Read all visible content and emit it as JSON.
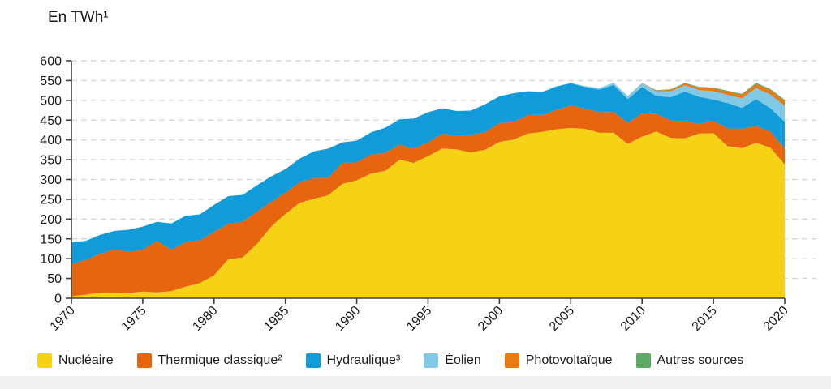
{
  "page": {
    "background": "#ffffff",
    "footer_strip_color": "#f0f0f1",
    "text_color": "#1a1a1a",
    "grid_color": "#d9d9d9",
    "axis_color": "#404040"
  },
  "chart_data": {
    "type": "area",
    "stacked": true,
    "title": "En TWh¹",
    "xlabel": "",
    "ylabel": "",
    "ylim": [
      0,
      600
    ],
    "y_tick_step": 50,
    "y_tick_labels": [
      "0",
      "50",
      "100",
      "150",
      "200",
      "250",
      "300",
      "350",
      "400",
      "450",
      "500",
      "550",
      "600"
    ],
    "x_tick_labels": [
      "1970",
      "1975",
      "1980",
      "1985",
      "1990",
      "1995",
      "2000",
      "2005",
      "2010",
      "2015",
      "2020"
    ],
    "grid": "horizontal-dashed",
    "legend_position": "bottom",
    "years": [
      1970,
      1971,
      1972,
      1973,
      1974,
      1975,
      1976,
      1977,
      1978,
      1979,
      1980,
      1981,
      1982,
      1983,
      1984,
      1985,
      1986,
      1987,
      1988,
      1989,
      1990,
      1991,
      1992,
      1993,
      1994,
      1995,
      1996,
      1997,
      1998,
      1999,
      2000,
      2001,
      2002,
      2003,
      2004,
      2005,
      2006,
      2007,
      2008,
      2009,
      2010,
      2011,
      2012,
      2013,
      2014,
      2015,
      2016,
      2017,
      2018,
      2019,
      2020
    ],
    "series": [
      {
        "id": "nucleaire",
        "name": "Nucléaire",
        "color": "#f5d216",
        "values": [
          5,
          9,
          14,
          14,
          13,
          17,
          15,
          18,
          29,
          38,
          58,
          99,
          103,
          137,
          181,
          213,
          241,
          251,
          260,
          289,
          298,
          315,
          322,
          350,
          342,
          359,
          378,
          376,
          368,
          375,
          395,
          401,
          416,
          420,
          427,
          430,
          428,
          418,
          418,
          390,
          408,
          421,
          405,
          404,
          416,
          417,
          384,
          379,
          393,
          380,
          338
        ]
      },
      {
        "id": "thermique-classique",
        "name": "Thermique classique²",
        "color": "#e8650f",
        "values": [
          81,
          88,
          98,
          109,
          104,
          105,
          130,
          104,
          113,
          108,
          110,
          89,
          90,
          81,
          63,
          53,
          52,
          52,
          45,
          53,
          45,
          48,
          45,
          38,
          36,
          35,
          38,
          34,
          45,
          44,
          48,
          44,
          47,
          43,
          49,
          57,
          51,
          52,
          53,
          53,
          59,
          45,
          44,
          43,
          25,
          31,
          45,
          49,
          42,
          40,
          40
        ]
      },
      {
        "id": "hydraulique",
        "name": "Hydraulique³",
        "color": "#119bd8",
        "values": [
          56,
          48,
          48,
          47,
          56,
          59,
          48,
          67,
          66,
          66,
          68,
          70,
          68,
          67,
          64,
          60,
          60,
          68,
          73,
          52,
          55,
          56,
          64,
          64,
          76,
          76,
          64,
          63,
          61,
          71,
          67,
          73,
          60,
          58,
          59,
          56,
          55,
          57,
          68,
          60,
          67,
          45,
          59,
          75,
          68,
          54,
          64,
          53,
          68,
          60,
          68
        ]
      },
      {
        "id": "eolien",
        "name": "Éolien",
        "color": "#82c9e5",
        "values": [
          0,
          0,
          0,
          0,
          0,
          0,
          0,
          0,
          0,
          0,
          0,
          0,
          0,
          0,
          0,
          0,
          0,
          0,
          0,
          0,
          0,
          0,
          0,
          0,
          0,
          0,
          0,
          0,
          0,
          0,
          0.1,
          0.1,
          0.3,
          0.4,
          0.6,
          1,
          2.2,
          4,
          5.7,
          7.9,
          9.7,
          11.9,
          14.9,
          15.9,
          17.1,
          21.1,
          20.7,
          24,
          28.1,
          34.1,
          39.7
        ]
      },
      {
        "id": "photovoltaique",
        "name": "Photovoltaïque",
        "color": "#e97b17",
        "values": [
          0,
          0,
          0,
          0,
          0,
          0,
          0,
          0,
          0,
          0,
          0,
          0,
          0,
          0,
          0,
          0,
          0,
          0,
          0,
          0,
          0,
          0,
          0,
          0,
          0,
          0,
          0,
          0,
          0,
          0,
          0,
          0,
          0,
          0,
          0,
          0,
          0,
          0,
          0,
          0.2,
          0.6,
          2,
          4,
          4.6,
          5.9,
          7.4,
          8.3,
          9.2,
          10.2,
          11.6,
          12.6
        ]
      },
      {
        "id": "autres-sources",
        "name": "Autres sources",
        "color": "#5bab62",
        "values": [
          0,
          0,
          0,
          0,
          0,
          0,
          0,
          0,
          0,
          0,
          0,
          0,
          0,
          0,
          0,
          0,
          0,
          0,
          0,
          0,
          0,
          0,
          0,
          0,
          0,
          0,
          0,
          0,
          0,
          0,
          0,
          0,
          0,
          0,
          0,
          0,
          0,
          0,
          0,
          0,
          0,
          0.8,
          1.2,
          1.5,
          1.8,
          2,
          2.2,
          2.5,
          2.7,
          2.9,
          3
        ]
      }
    ]
  }
}
